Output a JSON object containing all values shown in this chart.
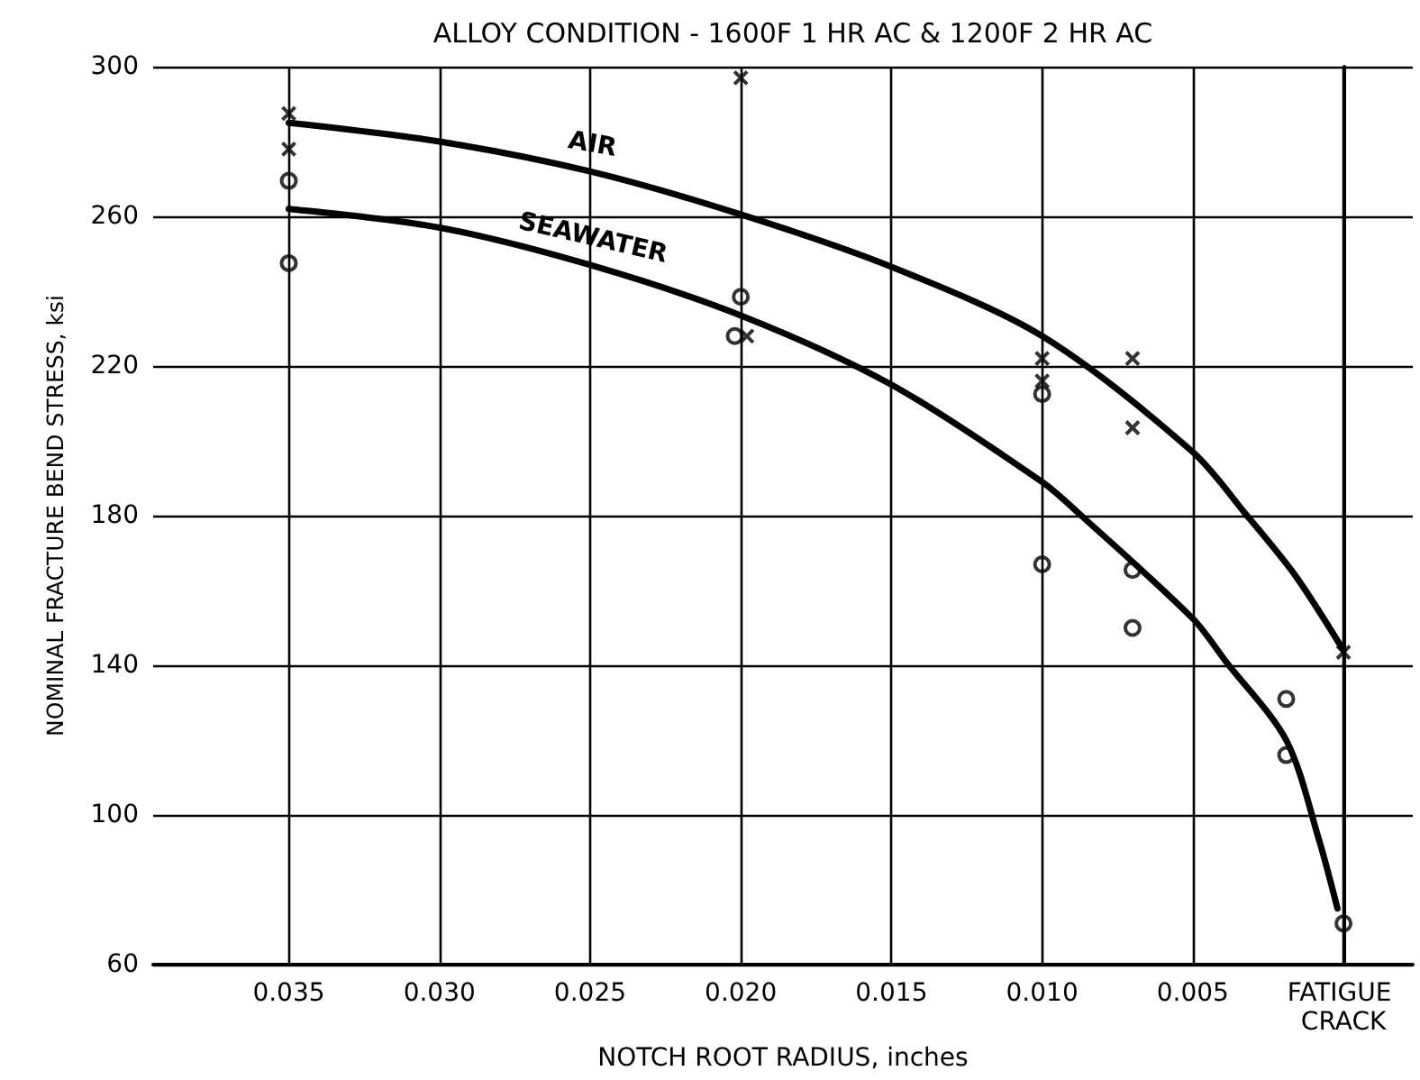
{
  "chart_data": {
    "type": "scatter",
    "title": "ALLOY CONDITION - 1600F 1 HR AC & 1200F 2 HR AC",
    "xlabel": "NOTCH ROOT RADIUS, inches",
    "ylabel": "NOMINAL FRACTURE BEND STRESS, ksi",
    "xlim": [
      0.0395,
      -0.0023
    ],
    "xticks": [
      0.035,
      {
        "value": 0.03,
        "label": "0.030"
      },
      0.025,
      {
        "value": 0.02,
        "label": "0.020"
      },
      0.015,
      {
        "value": 0.01,
        "label": "0.010"
      },
      0.005,
      {
        "value": 0,
        "label": "FATIGUE CRACK"
      }
    ],
    "ylim": [
      60,
      300
    ],
    "yticks": [
      60,
      100,
      140,
      180,
      220,
      260,
      300
    ],
    "grid": true,
    "legend": false,
    "series": [
      {
        "type": "line",
        "name": "AIR",
        "color": "#000000",
        "marker": "none",
        "line_style": "solid",
        "x": [
          0.035,
          0.03,
          0.025,
          0.02,
          0.015,
          0.01,
          0.005,
          0.0032,
          0.0016,
          0
        ],
        "values": [
          285,
          280,
          272,
          260.5,
          246.5,
          228,
          197,
          180,
          164,
          144
        ]
      },
      {
        "type": "line",
        "name": "SEAWATER",
        "color": "#000000",
        "marker": "none",
        "line_style": "solid",
        "x": [
          0.035,
          0.03,
          0.025,
          0.02,
          0.015,
          0.01,
          0.0087,
          0.005,
          0.0039,
          0.0019,
          0.0008,
          0.0002
        ],
        "values": [
          262,
          257,
          247,
          233.5,
          215,
          189,
          180,
          152.5,
          141,
          120,
          93,
          75
        ]
      },
      {
        "color": "#000000",
        "marker": "cross",
        "x": [
          0.035,
          0.035,
          0.02,
          0.0198,
          0.01,
          0.01,
          0.007,
          0.007,
          0
        ],
        "values": [
          287.5,
          278,
          297,
          228,
          222,
          216,
          222,
          203.5,
          143.5
        ]
      },
      {
        "color": "#000000",
        "marker": "circle",
        "x": [
          0.035,
          0.035,
          0.02,
          0.0202,
          0.01,
          0.01,
          0.007,
          0.007,
          0.0019,
          0.0019,
          0
        ],
        "values": [
          269.5,
          247.5,
          238.5,
          228,
          212.5,
          167,
          165.5,
          150,
          131,
          116,
          71
        ]
      }
    ]
  }
}
